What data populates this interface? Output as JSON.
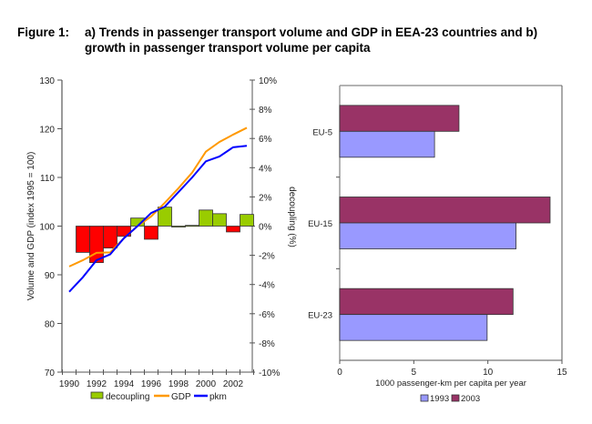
{
  "figure": {
    "label": "Figure 1:",
    "caption": "a) Trends in passenger transport volume and GDP in EEA-23 countries and b) growth in passenger transport volume per capita"
  },
  "chart_data": [
    {
      "type": "bar+line",
      "panel": "a",
      "x": [
        1990,
        1991,
        1992,
        1993,
        1994,
        1995,
        1996,
        1997,
        1998,
        1999,
        2000,
        2001,
        2002,
        2003
      ],
      "xticks": [
        "1990",
        "1992",
        "1994",
        "1996",
        "1998",
        "2000",
        "2002"
      ],
      "ylabel": "Volume and GDP (index 1995 = 100)",
      "ylim": [
        70,
        130
      ],
      "yticks": [
        "70",
        "80",
        "90",
        "100",
        "110",
        "120",
        "130"
      ],
      "y2label": "decoupling (%)",
      "y2lim": [
        -10,
        10
      ],
      "y2ticks": [
        "-10%",
        "-8%",
        "-6%",
        "-4%",
        "-2%",
        "0%",
        "2%",
        "4%",
        "6%",
        "8%",
        "10%"
      ],
      "series": [
        {
          "name": "decoupling",
          "kind": "bar",
          "axis": "right",
          "color_pos": "#99cc00",
          "color_neg": "#ff0000",
          "x": [
            1991,
            1992,
            1993,
            1994,
            1995,
            1996,
            1997,
            1998,
            1999,
            2000,
            2001,
            2002,
            2003
          ],
          "values": [
            -1.8,
            -2.5,
            -1.5,
            -0.7,
            0.55,
            -0.9,
            1.3,
            0.0,
            0.05,
            1.1,
            0.85,
            -0.4,
            0.8
          ]
        },
        {
          "name": "GDP",
          "kind": "line",
          "axis": "left",
          "color": "#ff9900",
          "x": [
            1990,
            1991,
            1992,
            1993,
            1994,
            1995,
            1996,
            1997,
            1998,
            1999,
            2000,
            2001,
            2002,
            2003
          ],
          "values": [
            91.7,
            93.0,
            94.5,
            94.6,
            97.5,
            100,
            102.0,
            104.8,
            107.8,
            111.0,
            115.3,
            117.3,
            118.8,
            120.2
          ]
        },
        {
          "name": "pkm",
          "kind": "line",
          "axis": "left",
          "color": "#0000ff",
          "x": [
            1990,
            1991,
            1992,
            1993,
            1994,
            1995,
            1996,
            1997,
            1998,
            1999,
            2000,
            2001,
            2002,
            2003
          ],
          "values": [
            86.5,
            89.5,
            93.0,
            94.2,
            97.5,
            100,
            102.7,
            104.0,
            107.0,
            110.0,
            113.3,
            114.3,
            116.2,
            116.5
          ]
        }
      ],
      "legend": [
        "decoupling",
        "GDP",
        "pkm"
      ],
      "legend_position": "bottom",
      "grid": false
    },
    {
      "type": "bar",
      "orientation": "horizontal",
      "panel": "b",
      "categories": [
        "EU-5",
        "EU-15",
        "EU-23"
      ],
      "series": [
        {
          "name": "1993",
          "color": "#9999ff",
          "values": [
            6.4,
            11.9,
            9.95
          ]
        },
        {
          "name": "2003",
          "color": "#993366",
          "values": [
            8.05,
            14.2,
            11.7
          ]
        }
      ],
      "xlabel": "1000 passenger-km per capita per year",
      "xlim": [
        0,
        15
      ],
      "xticks": [
        "0",
        "5",
        "10",
        "15"
      ],
      "legend": [
        "1993",
        "2003"
      ],
      "legend_position": "bottom",
      "grid": false
    }
  ]
}
